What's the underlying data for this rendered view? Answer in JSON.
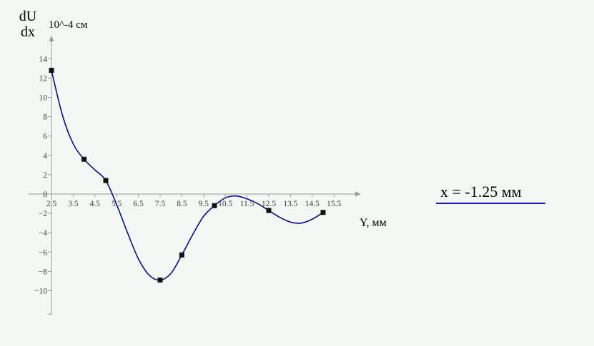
{
  "chart_data": {
    "type": "line",
    "y_label_top": "dU",
    "y_label_bottom": "dx",
    "y_unit": "10^-4 см",
    "xlabel": "Y, мм",
    "x_ticks": [
      2.5,
      3.5,
      4.5,
      5.5,
      6.5,
      7.5,
      8.5,
      9.5,
      10.5,
      11.5,
      12.5,
      13.5,
      14.5,
      15.5
    ],
    "y_ticks": [
      14,
      12,
      10,
      8,
      6,
      4,
      2,
      0,
      -2,
      -4,
      -6,
      -8,
      -10
    ],
    "xlim": [
      2.5,
      16
    ],
    "ylim": [
      -12.4,
      14.9
    ],
    "series": [
      {
        "color": "#0a0a8a",
        "points": [
          {
            "x": 2.5,
            "y": 12.8
          },
          {
            "x": 4.0,
            "y": 3.6
          },
          {
            "x": 5.0,
            "y": 1.4
          },
          {
            "x": 7.5,
            "y": -8.9
          },
          {
            "x": 8.5,
            "y": -6.3
          },
          {
            "x": 10.0,
            "y": -1.2
          },
          {
            "x": 12.5,
            "y": -1.7
          },
          {
            "x": 15.0,
            "y": -1.9
          }
        ],
        "curve": [
          {
            "x": 2.5,
            "y": 12.8
          },
          {
            "x": 3.0,
            "y": 8.2
          },
          {
            "x": 3.5,
            "y": 5.2
          },
          {
            "x": 4.0,
            "y": 3.6
          },
          {
            "x": 4.5,
            "y": 2.5
          },
          {
            "x": 5.0,
            "y": 1.4
          },
          {
            "x": 5.5,
            "y": -1.1
          },
          {
            "x": 6.0,
            "y": -4.0
          },
          {
            "x": 6.5,
            "y": -6.7
          },
          {
            "x": 7.0,
            "y": -8.4
          },
          {
            "x": 7.5,
            "y": -8.9
          },
          {
            "x": 8.0,
            "y": -8.2
          },
          {
            "x": 8.5,
            "y": -6.3
          },
          {
            "x": 9.0,
            "y": -4.2
          },
          {
            "x": 9.5,
            "y": -2.3
          },
          {
            "x": 10.0,
            "y": -1.2
          },
          {
            "x": 10.5,
            "y": -0.4
          },
          {
            "x": 11.0,
            "y": -0.2
          },
          {
            "x": 11.5,
            "y": -0.5
          },
          {
            "x": 12.0,
            "y": -1.0
          },
          {
            "x": 12.5,
            "y": -1.7
          },
          {
            "x": 13.0,
            "y": -2.4
          },
          {
            "x": 13.5,
            "y": -2.9
          },
          {
            "x": 14.0,
            "y": -3.0
          },
          {
            "x": 14.5,
            "y": -2.6
          },
          {
            "x": 15.0,
            "y": -1.9
          }
        ]
      }
    ],
    "grid": false
  },
  "annotation": {
    "equation": "x = -1.25 мм",
    "underline_color": "#1a1ab0"
  }
}
